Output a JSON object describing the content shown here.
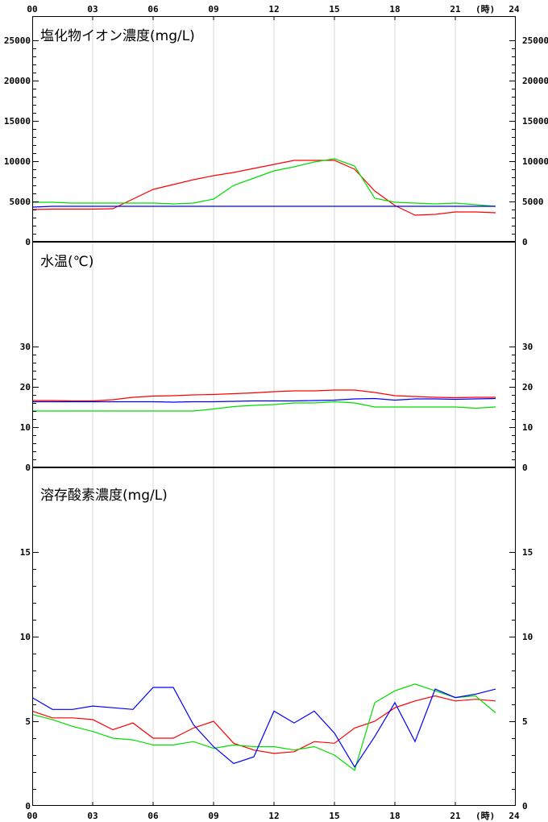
{
  "chart_data": [
    {
      "type": "line",
      "title": "塩化物イオン濃度(mg/L)",
      "x": [
        0,
        1,
        2,
        3,
        4,
        5,
        6,
        7,
        8,
        9,
        10,
        11,
        12,
        13,
        14,
        15,
        16,
        17,
        18,
        19,
        20,
        21,
        22,
        23
      ],
      "xlim": [
        0,
        24
      ],
      "ylim": [
        0,
        28000
      ],
      "yticks": [
        0,
        5000,
        10000,
        15000,
        20000,
        25000
      ],
      "series": [
        {
          "color": "#ff0000",
          "values": [
            4000,
            4050,
            4050,
            4050,
            4100,
            5300,
            6500,
            7100,
            7700,
            8200,
            8600,
            9100,
            9600,
            10100,
            10100,
            10100,
            9000,
            6300,
            4500,
            3300,
            3400,
            3700,
            3700,
            3600
          ]
        },
        {
          "color": "#00dd00",
          "values": [
            4900,
            4900,
            4800,
            4800,
            4800,
            4800,
            4800,
            4700,
            4800,
            5300,
            7000,
            7900,
            8800,
            9300,
            9900,
            10300,
            9400,
            5400,
            4900,
            4800,
            4700,
            4800,
            4600,
            4400
          ]
        },
        {
          "color": "#0000ff",
          "values": [
            4300,
            4400,
            4400,
            4400,
            4400,
            4400,
            4400,
            4400,
            4400,
            4400,
            4400,
            4400,
            4400,
            4400,
            4400,
            4400,
            4400,
            4400,
            4400,
            4400,
            4400,
            4400,
            4400,
            4400
          ]
        }
      ]
    },
    {
      "type": "line",
      "title": "水温(℃)",
      "x": [
        0,
        1,
        2,
        3,
        4,
        5,
        6,
        7,
        8,
        9,
        10,
        11,
        12,
        13,
        14,
        15,
        16,
        17,
        18,
        19,
        20,
        21,
        22,
        23
      ],
      "xlim": [
        0,
        24
      ],
      "ylim": [
        0,
        56
      ],
      "yticks": [
        0,
        10,
        20,
        30
      ],
      "series": [
        {
          "color": "#ff0000",
          "values": [
            16.6,
            16.6,
            16.5,
            16.5,
            16.8,
            17.4,
            17.7,
            17.8,
            18.0,
            18.1,
            18.3,
            18.5,
            18.8,
            19.0,
            19.0,
            19.2,
            19.2,
            18.6,
            17.8,
            17.6,
            17.4,
            17.3,
            17.4,
            17.4
          ]
        },
        {
          "color": "#00dd00",
          "values": [
            14.0,
            14.0,
            14.0,
            14.0,
            14.0,
            14.0,
            14.0,
            14.0,
            14.0,
            14.5,
            15.1,
            15.4,
            15.6,
            16.0,
            16.0,
            16.3,
            16.0,
            15.0,
            15.0,
            15.0,
            15.0,
            15.0,
            14.7,
            15.0
          ]
        },
        {
          "color": "#0000ff",
          "values": [
            16.3,
            16.3,
            16.3,
            16.3,
            16.3,
            16.3,
            16.3,
            16.2,
            16.3,
            16.3,
            16.4,
            16.5,
            16.5,
            16.5,
            16.6,
            16.7,
            17.0,
            17.1,
            16.7,
            17.0,
            17.0,
            16.9,
            17.0,
            17.1
          ]
        }
      ]
    },
    {
      "type": "line",
      "title": "溶存酸素濃度(mg/L)",
      "x": [
        0,
        1,
        2,
        3,
        4,
        5,
        6,
        7,
        8,
        9,
        10,
        11,
        12,
        13,
        14,
        15,
        16,
        17,
        18,
        19,
        20,
        21,
        22,
        23
      ],
      "xlim": [
        0,
        24
      ],
      "ylim": [
        0,
        20
      ],
      "yticks": [
        0,
        5,
        10,
        15
      ],
      "series": [
        {
          "color": "#ff0000",
          "values": [
            5.6,
            5.2,
            5.2,
            5.1,
            4.5,
            4.9,
            4.0,
            4.0,
            4.6,
            5.0,
            3.7,
            3.3,
            3.1,
            3.2,
            3.8,
            3.7,
            4.6,
            5.0,
            5.8,
            6.2,
            6.5,
            6.2,
            6.3,
            6.2
          ]
        },
        {
          "color": "#00dd00",
          "values": [
            5.4,
            5.1,
            4.7,
            4.4,
            4.0,
            3.9,
            3.6,
            3.6,
            3.8,
            3.4,
            3.6,
            3.5,
            3.5,
            3.3,
            3.5,
            3.0,
            2.1,
            6.1,
            6.8,
            7.2,
            6.8,
            6.4,
            6.5,
            5.5
          ]
        },
        {
          "color": "#0000ff",
          "values": [
            6.4,
            5.7,
            5.7,
            5.9,
            5.8,
            5.7,
            7.0,
            7.0,
            4.8,
            3.5,
            2.5,
            2.9,
            5.6,
            4.9,
            5.6,
            4.3,
            2.3,
            4.1,
            6.1,
            3.8,
            6.9,
            6.4,
            6.6,
            6.9
          ]
        }
      ]
    }
  ],
  "axis": {
    "x_ticks": [
      "00",
      "03",
      "06",
      "09",
      "12",
      "15",
      "18",
      "21",
      "24"
    ],
    "unit": "(時)"
  }
}
